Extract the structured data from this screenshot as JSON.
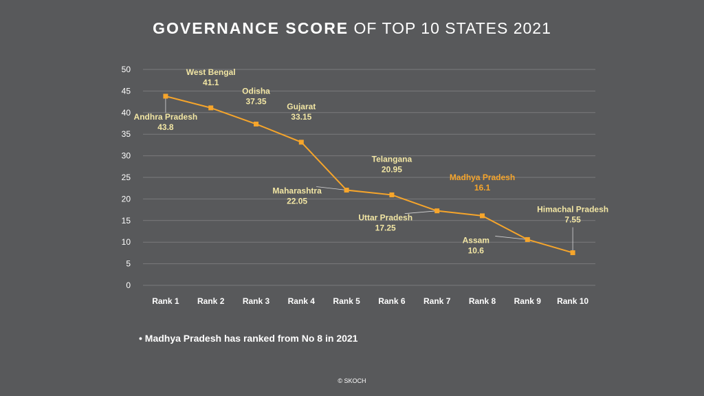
{
  "title": {
    "bold": "GOVERNANCE SCORE",
    "rest": "OF TOP 10 STATES 2021"
  },
  "note": "• Madhya Pradesh has ranked from No 8 in 2021",
  "copyright": "© SKOCH",
  "colors": {
    "background": "#58595b",
    "line": "#f6a52b",
    "label": "#f2e6a4",
    "highlight_label": "#f6a52b",
    "grid": "#7a7b7d",
    "axis_text": "#ffffff"
  },
  "chart_data": {
    "type": "line",
    "categories": [
      "Rank 1",
      "Rank 2",
      "Rank 3",
      "Rank 4",
      "Rank 5",
      "Rank 6",
      "Rank 7",
      "Rank 8",
      "Rank 9",
      "Rank 10"
    ],
    "series": [
      {
        "values": [
          43.8,
          41.1,
          37.35,
          33.15,
          22.05,
          20.95,
          17.25,
          16.1,
          10.6,
          7.55
        ],
        "point_labels": [
          "Andhra Pradesh",
          "West Bengal",
          "Odisha",
          "Gujarat",
          "Maharashtra",
          "Telangana",
          "Uttar Pradesh",
          "Madhya Pradesh",
          "Assam",
          "Himachal Pradesh"
        ],
        "value_labels": [
          "43.8",
          "41.1",
          "37.35",
          "33.15",
          "22.05",
          "20.95",
          "17.25",
          "16.1",
          "10.6",
          "7.55"
        ]
      }
    ],
    "highlight": "Madhya Pradesh",
    "yticks": [
      "0",
      "5",
      "10",
      "15",
      "20",
      "25",
      "30",
      "35",
      "40",
      "45",
      "50"
    ],
    "ylim": [
      0,
      50
    ],
    "grid": true,
    "legend": "none"
  }
}
